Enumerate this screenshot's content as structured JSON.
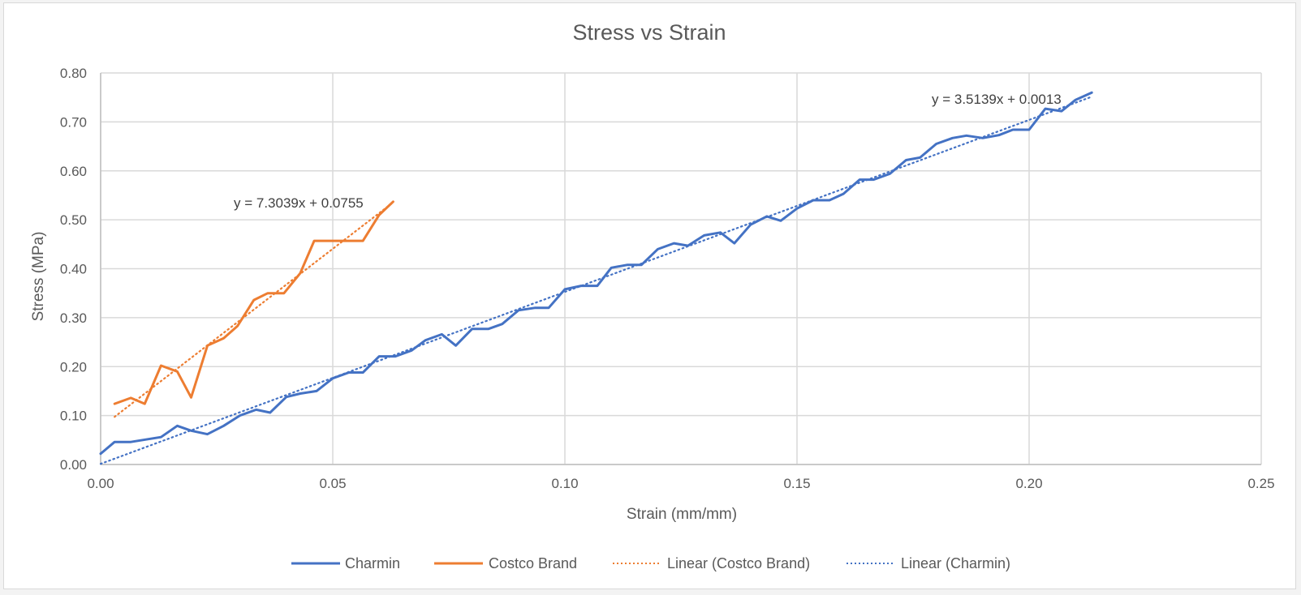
{
  "chart_data": {
    "type": "line",
    "title": "Stress vs Strain",
    "xlabel": "Strain (mm/mm)",
    "ylabel": "Stress (MPa)",
    "xlim": [
      0,
      0.25
    ],
    "ylim": [
      0,
      0.8
    ],
    "x_ticks": [
      "0.00",
      "0.05",
      "0.10",
      "0.15",
      "0.20",
      "0.25"
    ],
    "y_ticks": [
      "0.00",
      "0.10",
      "0.20",
      "0.30",
      "0.40",
      "0.50",
      "0.60",
      "0.70",
      "0.80"
    ],
    "grid": true,
    "legend_position": "bottom",
    "series": [
      {
        "name": "Charmin",
        "color": "#4472c4",
        "style": "solid",
        "points": [
          [
            0.0,
            0.022
          ],
          [
            0.003,
            0.046
          ],
          [
            0.0065,
            0.046
          ],
          [
            0.013,
            0.056
          ],
          [
            0.0165,
            0.079
          ],
          [
            0.0195,
            0.069
          ],
          [
            0.023,
            0.062
          ],
          [
            0.0265,
            0.079
          ],
          [
            0.03,
            0.1
          ],
          [
            0.0335,
            0.112
          ],
          [
            0.0365,
            0.106
          ],
          [
            0.04,
            0.138
          ],
          [
            0.043,
            0.145
          ],
          [
            0.0465,
            0.15
          ],
          [
            0.05,
            0.176
          ],
          [
            0.0535,
            0.188
          ],
          [
            0.0565,
            0.188
          ],
          [
            0.06,
            0.221
          ],
          [
            0.0635,
            0.221
          ],
          [
            0.067,
            0.233
          ],
          [
            0.07,
            0.254
          ],
          [
            0.0735,
            0.266
          ],
          [
            0.0765,
            0.243
          ],
          [
            0.08,
            0.277
          ],
          [
            0.0835,
            0.277
          ],
          [
            0.0865,
            0.287
          ],
          [
            0.09,
            0.315
          ],
          [
            0.0935,
            0.32
          ],
          [
            0.0965,
            0.32
          ],
          [
            0.1,
            0.358
          ],
          [
            0.1035,
            0.365
          ],
          [
            0.107,
            0.365
          ],
          [
            0.11,
            0.402
          ],
          [
            0.1135,
            0.408
          ],
          [
            0.1165,
            0.408
          ],
          [
            0.12,
            0.44
          ],
          [
            0.1235,
            0.452
          ],
          [
            0.1265,
            0.447
          ],
          [
            0.13,
            0.468
          ],
          [
            0.1335,
            0.474
          ],
          [
            0.1365,
            0.452
          ],
          [
            0.14,
            0.49
          ],
          [
            0.1435,
            0.507
          ],
          [
            0.1465,
            0.498
          ],
          [
            0.15,
            0.523
          ],
          [
            0.1535,
            0.54
          ],
          [
            0.157,
            0.54
          ],
          [
            0.16,
            0.553
          ],
          [
            0.1635,
            0.582
          ],
          [
            0.1665,
            0.582
          ],
          [
            0.17,
            0.594
          ],
          [
            0.1735,
            0.622
          ],
          [
            0.1765,
            0.627
          ],
          [
            0.18,
            0.655
          ],
          [
            0.1835,
            0.667
          ],
          [
            0.1865,
            0.672
          ],
          [
            0.19,
            0.667
          ],
          [
            0.1935,
            0.673
          ],
          [
            0.1965,
            0.684
          ],
          [
            0.2,
            0.684
          ],
          [
            0.2035,
            0.727
          ],
          [
            0.207,
            0.722
          ],
          [
            0.21,
            0.745
          ],
          [
            0.2135,
            0.76
          ]
        ]
      },
      {
        "name": "Costco Brand",
        "color": "#ed7d31",
        "style": "solid",
        "points": [
          [
            0.003,
            0.124
          ],
          [
            0.0065,
            0.136
          ],
          [
            0.0095,
            0.124
          ],
          [
            0.013,
            0.202
          ],
          [
            0.0165,
            0.19
          ],
          [
            0.0195,
            0.137
          ],
          [
            0.023,
            0.243
          ],
          [
            0.0265,
            0.258
          ],
          [
            0.0295,
            0.283
          ],
          [
            0.033,
            0.336
          ],
          [
            0.036,
            0.35
          ],
          [
            0.0395,
            0.35
          ],
          [
            0.043,
            0.391
          ],
          [
            0.046,
            0.457
          ],
          [
            0.0495,
            0.457
          ],
          [
            0.053,
            0.457
          ],
          [
            0.0565,
            0.457
          ],
          [
            0.06,
            0.51
          ],
          [
            0.063,
            0.537
          ]
        ]
      },
      {
        "name": "Linear (Costco Brand)",
        "color": "#ed7d31",
        "style": "dotted",
        "points": [
          [
            0.003,
            0.0974
          ],
          [
            0.063,
            0.5356
          ]
        ]
      },
      {
        "name": "Linear (Charmin)",
        "color": "#4472c4",
        "style": "dotted",
        "points": [
          [
            0.0,
            0.0013
          ],
          [
            0.2135,
            0.7515
          ]
        ]
      }
    ],
    "annotations": [
      {
        "text": "y = 7.3039x + 0.0755",
        "series": "Linear (Costco Brand)",
        "color": "#404040"
      },
      {
        "text": "y = 3.5139x + 0.0013",
        "series": "Linear (Charmin)",
        "color": "#404040"
      }
    ]
  }
}
